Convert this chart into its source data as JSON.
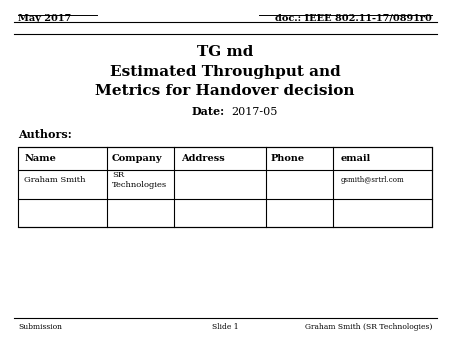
{
  "top_left_text": "May 2017",
  "top_right_text": "doc.: IEEE 802.11-17/0891r0",
  "title_line1": "TG md",
  "title_line2": "Estimated Throughput and",
  "title_line3": "Metrics for Handover decision",
  "date_label": "Date:",
  "date_value": "2017-05",
  "authors_label": "Authors:",
  "table_headers": [
    "Name",
    "Company",
    "Address",
    "Phone",
    "email"
  ],
  "table_row1": [
    "Graham Smith",
    "SR\nTechnologies",
    "",
    "",
    "gsmith@srtrl.com"
  ],
  "table_row2": [
    "",
    "",
    "",
    "",
    ""
  ],
  "footer_left": "Submission",
  "footer_center": "Slide 1",
  "footer_right": "Graham Smith (SR Technologies)",
  "bg_color": "#ffffff",
  "text_color": "#000000",
  "col_props": [
    0.185,
    0.14,
    0.19,
    0.14,
    0.205
  ]
}
